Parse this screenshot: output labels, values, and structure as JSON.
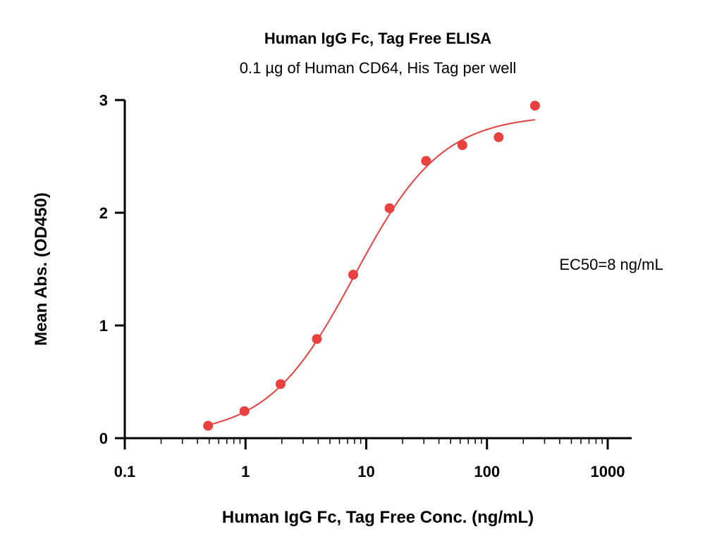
{
  "chart_data": {
    "type": "scatter",
    "title": "Human IgG Fc, Tag Free ELISA",
    "subtitle": "0.1 µg of Human CD64, His Tag per well",
    "xlabel": "Human IgG Fc, Tag Free Conc. (ng/mL)",
    "ylabel": "Mean Abs. (OD450)",
    "xscale": "log",
    "xlim": [
      0.1,
      1000
    ],
    "ylim": [
      0,
      3
    ],
    "xticks": [
      0.1,
      1,
      10,
      100,
      1000
    ],
    "xtick_labels": [
      "0.1",
      "1",
      "10",
      "100",
      "1000"
    ],
    "yticks": [
      0,
      1,
      2,
      3
    ],
    "ytick_labels": [
      "0",
      "1",
      "2",
      "3"
    ],
    "grid": false,
    "annotation": "EC50=8 ng/mL",
    "color": "#e8413f",
    "series": [
      {
        "x": [
          0.49,
          0.98,
          1.95,
          3.9,
          7.8,
          15.6,
          31.3,
          62.5,
          125,
          250
        ],
        "y": [
          0.11,
          0.24,
          0.48,
          0.88,
          1.45,
          2.04,
          2.46,
          2.6,
          2.67,
          2.95
        ]
      }
    ],
    "fit_curve": {
      "type": "4PL",
      "bottom": 0.02,
      "top": 2.87,
      "ec50": 8,
      "hill": 1.2,
      "x_range": [
        0.49,
        250
      ]
    }
  }
}
